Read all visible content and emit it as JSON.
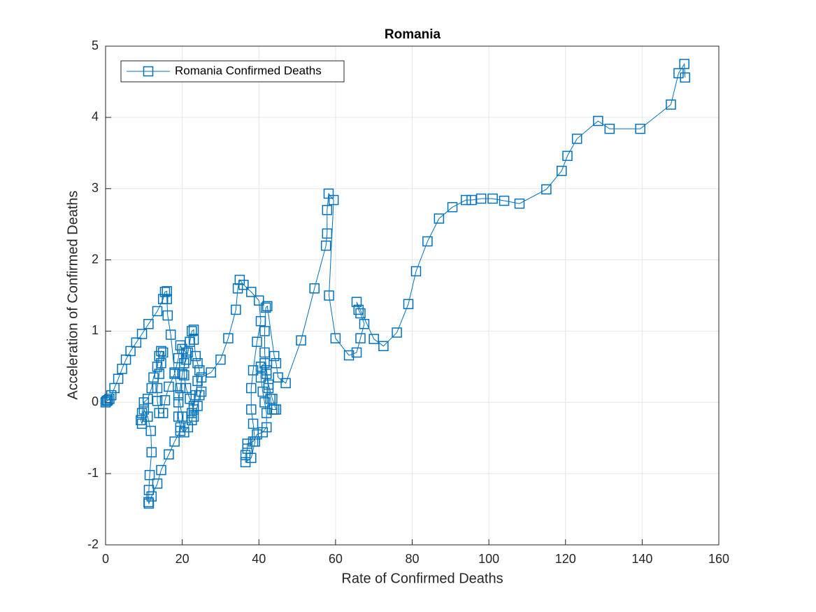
{
  "chart_data": {
    "type": "line",
    "title": "Romania",
    "x_label": "Rate of Confirmed Deaths",
    "y_label": "Acceleration of Confirmed Deaths",
    "x": [
      0,
      0.3,
      0.6,
      1,
      1.5,
      2.3,
      3.3,
      4.3,
      5.3,
      6.5,
      8,
      9.5,
      11.2,
      13.5,
      15,
      15.5,
      16,
      16,
      16.2,
      17,
      18,
      19,
      20,
      19.5,
      18,
      16.5,
      14.5,
      13.5,
      12,
      11.3,
      11.2,
      11.3,
      11.5,
      12,
      11.8,
      11,
      10,
      9.5,
      9.2,
      9.5,
      10,
      11,
      12,
      12.5,
      13.5,
      14,
      14.5,
      15,
      14.5,
      14,
      13.5,
      13.5,
      14,
      15,
      15.5,
      16.5,
      18,
      19,
      19.5,
      20,
      21,
      21,
      20,
      19.5,
      19,
      19,
      19.5,
      20.5,
      21.5,
      22.5,
      23,
      22,
      21,
      20.5,
      20.5,
      21.5,
      22,
      22.5,
      23,
      23,
      23.5,
      24,
      24.5,
      24,
      23.5,
      23,
      22.5,
      23,
      24,
      24.5,
      25,
      25,
      27.5,
      30,
      32,
      34,
      34.5,
      35,
      36,
      38,
      40,
      40.5,
      39.5,
      38.5,
      38,
      38,
      38.5,
      39,
      38,
      36.5,
      36.5,
      37,
      37,
      38.5,
      39.5,
      41,
      42,
      42,
      41.5,
      41,
      40.5,
      40.5,
      41.5,
      42,
      42.5,
      43,
      43.5,
      44,
      44.5,
      43.5,
      42.5,
      42,
      41.5,
      41.5,
      41.8,
      42.2,
      44,
      44.5,
      45,
      47,
      51,
      54.5,
      57.5,
      57.8,
      57.8,
      58.2,
      59.5,
      58.3,
      60,
      63.5,
      65.5,
      66.5,
      67.5,
      66.5,
      66,
      65.5,
      70,
      72.5,
      76,
      79,
      81,
      84,
      87,
      90.5,
      94,
      95.5,
      98,
      101,
      104,
      108,
      115,
      119,
      120.5,
      123,
      128.5,
      131.5,
      139.5,
      147.5,
      149.5,
      151,
      151.2
    ],
    "series": [
      {
        "name": "Romania Confirmed Deaths",
        "color": "#0072bd",
        "values": [
          0,
          0.02,
          0.03,
          0.05,
          0.1,
          0.2,
          0.33,
          0.47,
          0.6,
          0.72,
          0.84,
          0.96,
          1.1,
          1.28,
          1.45,
          1.55,
          1.56,
          1.45,
          1.22,
          0.95,
          0.42,
          0.1,
          -0.2,
          -0.4,
          -0.55,
          -0.73,
          -0.95,
          -1.14,
          -1.32,
          -1.42,
          -1.4,
          -1.23,
          -1.02,
          -0.7,
          -0.4,
          -0.2,
          -0.1,
          -0.3,
          -0.25,
          -0.15,
          0,
          0.05,
          0.2,
          0.35,
          0.5,
          0.65,
          0.72,
          0.7,
          0.55,
          0.4,
          0.2,
          0.02,
          -0.15,
          -0.15,
          0.03,
          0.22,
          0.4,
          0.62,
          0.8,
          0.75,
          0.7,
          0.6,
          0.4,
          0.2,
          0,
          -0.2,
          -0.35,
          -0.42,
          -0.35,
          -0.25,
          -0.1,
          0.05,
          0.2,
          0.38,
          0.55,
          0.7,
          0.85,
          1,
          1.02,
          0.88,
          0.65,
          0.55,
          0.45,
          0.3,
          0.1,
          -0.05,
          -0.15,
          -0.2,
          -0.05,
          0.1,
          0.15,
          0.35,
          0.42,
          0.6,
          0.9,
          1.3,
          1.6,
          1.72,
          1.65,
          1.55,
          1.43,
          1.14,
          0.85,
          0.45,
          0.2,
          -0.1,
          -0.3,
          -0.55,
          -0.78,
          -0.84,
          -0.74,
          -0.65,
          -0.58,
          -0.55,
          -0.45,
          -0.42,
          -0.35,
          -0.15,
          0,
          0.15,
          0.35,
          0.5,
          0.55,
          0.4,
          0.2,
          0.05,
          -0.1,
          -0.1,
          -0.1,
          0.05,
          0.25,
          0.45,
          0.7,
          1,
          1.33,
          1.35,
          0.65,
          0.55,
          0.35,
          0.27,
          0.87,
          1.6,
          2.2,
          2.37,
          2.7,
          2.93,
          2.84,
          1.5,
          0.9,
          0.66,
          0.7,
          0.9,
          1.1,
          1.25,
          1.3,
          1.41,
          0.89,
          0.79,
          0.98,
          1.38,
          1.84,
          2.26,
          2.58,
          2.74,
          2.84,
          2.84,
          2.86,
          2.86,
          2.83,
          2.79,
          2.99,
          3.25,
          3.46,
          3.7,
          3.95,
          3.84,
          3.84,
          4.18,
          4.62,
          4.75,
          4.56
        ]
      }
    ],
    "xlim": [
      0,
      160
    ],
    "xticks": [
      0,
      20,
      40,
      60,
      80,
      100,
      120,
      140,
      160
    ],
    "ylim": [
      -2,
      5
    ],
    "yticks": [
      -2,
      -1,
      0,
      1,
      2,
      3,
      4,
      5
    ],
    "grid": true,
    "legend": "upper-left",
    "marker": "square"
  }
}
